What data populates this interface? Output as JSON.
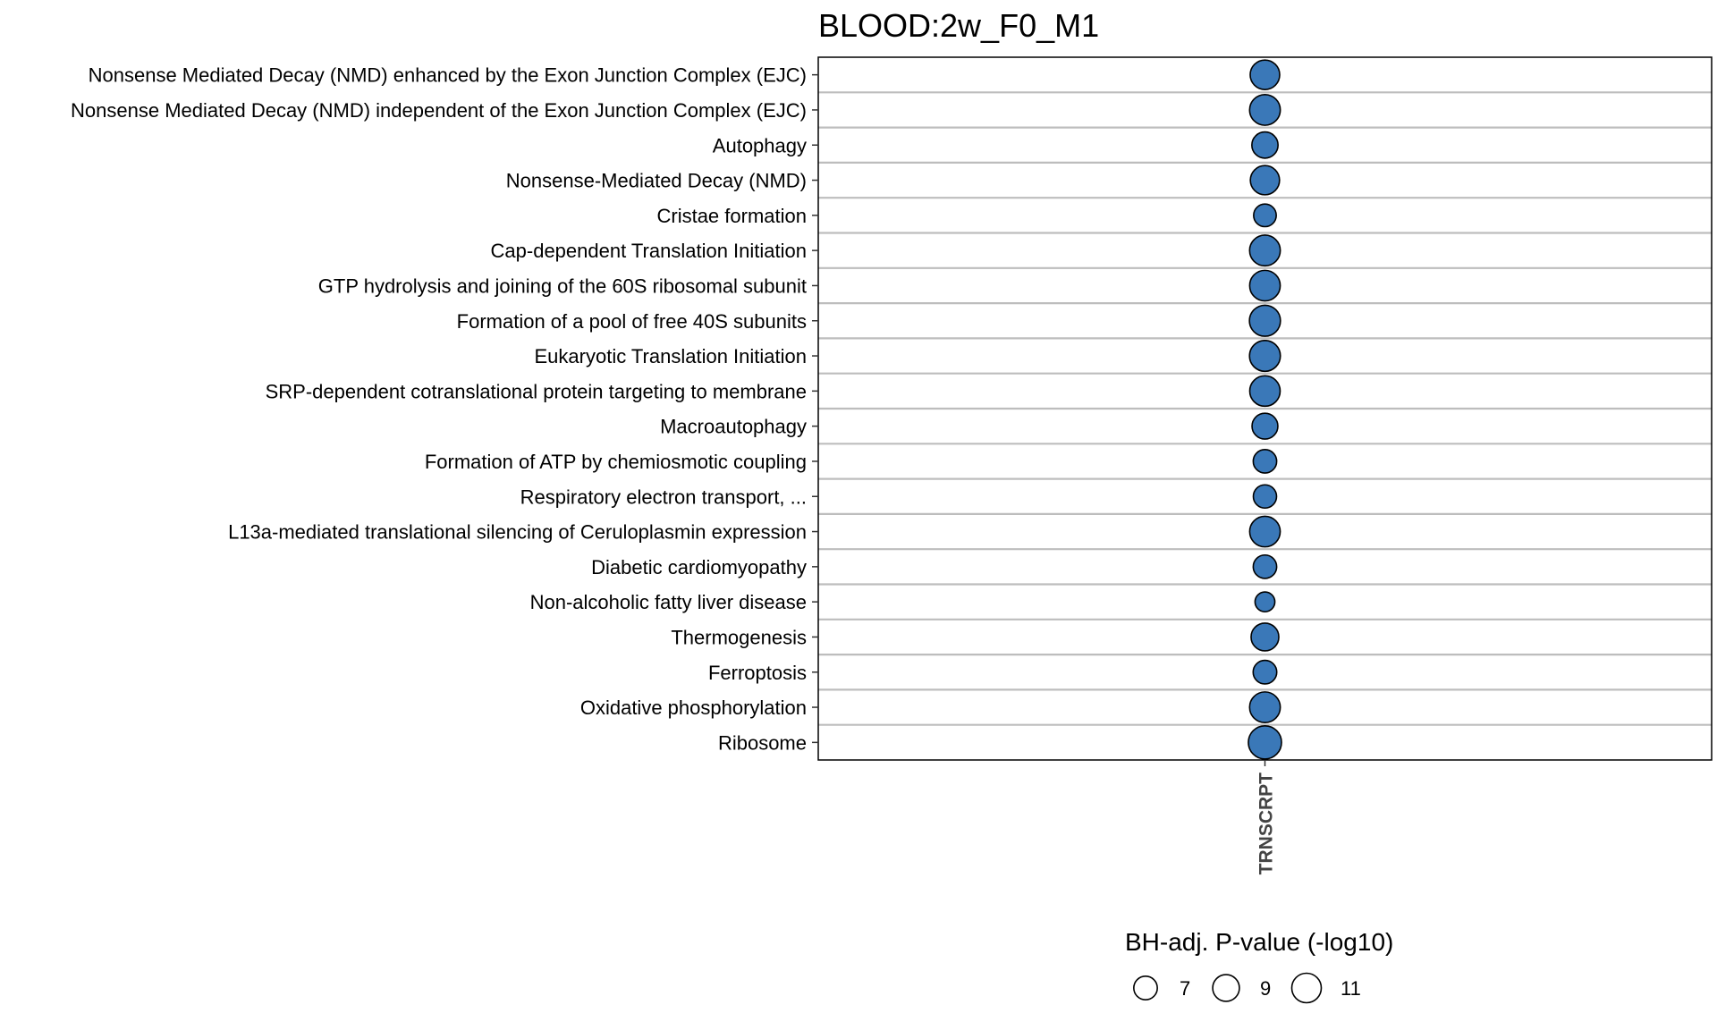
{
  "chart_data": {
    "type": "scatter",
    "title": "BLOOD:2w_F0_M1",
    "x_categories": [
      "TRNSCRPT"
    ],
    "y_categories": [
      "Nonsense Mediated Decay (NMD) enhanced by the Exon Junction Complex (EJC)",
      "Nonsense Mediated Decay (NMD) independent of the Exon Junction Complex (EJC)",
      "Autophagy",
      "Nonsense-Mediated Decay (NMD)",
      "Cristae formation",
      "Cap-dependent Translation Initiation",
      "GTP hydrolysis and joining of the 60S ribosomal subunit",
      "Formation of a pool of free 40S subunits",
      "Eukaryotic Translation Initiation",
      "SRP-dependent cotranslational protein targeting to membrane",
      "Macroautophagy",
      "Formation of ATP by chemiosmotic coupling",
      "Respiratory electron transport, ...",
      "L13a-mediated translational silencing of Ceruloplasmin expression",
      "Diabetic cardiomyopathy",
      "Non-alcoholic fatty liver disease",
      "Thermogenesis",
      "Ferroptosis",
      "Oxidative phosphorylation",
      "Ribosome"
    ],
    "series": [
      {
        "x": "TRNSCRPT",
        "size_values": [
          9.5,
          10.3,
          7.5,
          9.3,
          5.6,
          10.3,
          10.2,
          10.5,
          10.4,
          10.1,
          7.3,
          6.0,
          5.9,
          10.2,
          6.0,
          4.3,
          8.4,
          6.1,
          10.3,
          12.0
        ]
      }
    ],
    "color": "#3a78b8",
    "size_legend": {
      "title": "BH-adj. P-value (-log10)",
      "values": [
        7,
        9,
        11
      ],
      "labels": [
        "7",
        "9",
        "11"
      ]
    },
    "grid": true
  }
}
